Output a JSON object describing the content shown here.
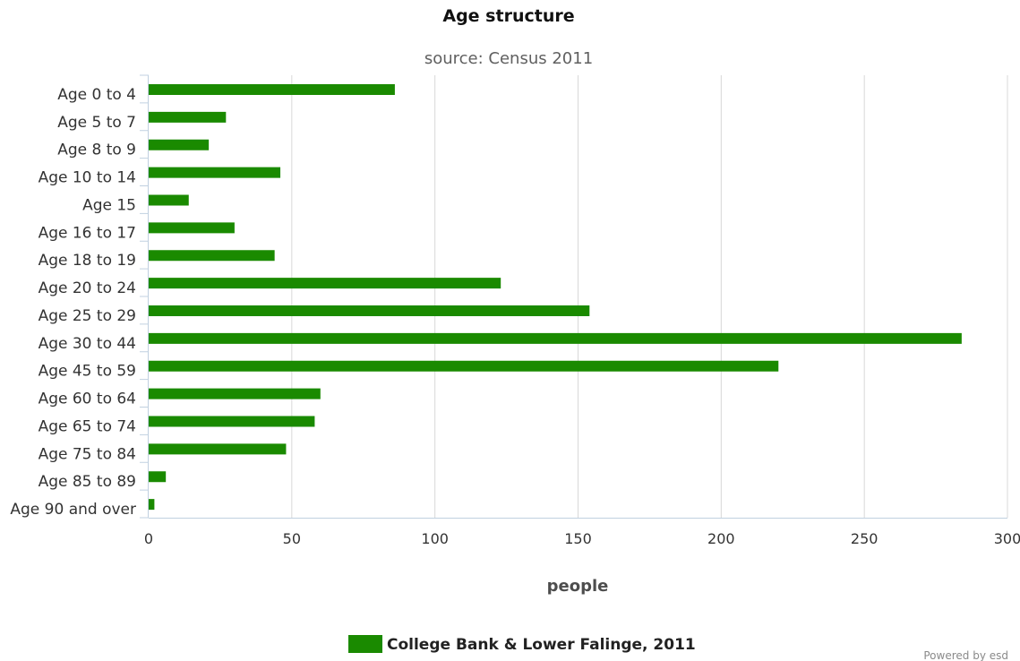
{
  "chart_data": {
    "type": "bar",
    "orientation": "horizontal",
    "title": "Age structure",
    "subtitle": "source: Census 2011",
    "xlabel": "people",
    "ylabel": "",
    "categories": [
      "Age 0 to 4",
      "Age 5 to 7",
      "Age 8 to 9",
      "Age 10 to 14",
      "Age 15",
      "Age 16 to 17",
      "Age 18 to 19",
      "Age 20 to 24",
      "Age 25 to 29",
      "Age 30 to 44",
      "Age 45 to 59",
      "Age 60 to 64",
      "Age 65 to 74",
      "Age 75 to 84",
      "Age 85 to 89",
      "Age 90 and over"
    ],
    "series": [
      {
        "name": "College Bank & Lower Falinge, 2011",
        "color": "#1a8a00",
        "values": [
          86,
          27,
          21,
          46,
          14,
          30,
          44,
          123,
          154,
          284,
          220,
          60,
          58,
          48,
          6,
          2
        ]
      }
    ],
    "xlim": [
      0,
      300
    ],
    "xticks": [
      0,
      50,
      100,
      150,
      200,
      250,
      300
    ],
    "grid": true,
    "legend_position": "bottom-center"
  },
  "credit": "Powered by esd"
}
